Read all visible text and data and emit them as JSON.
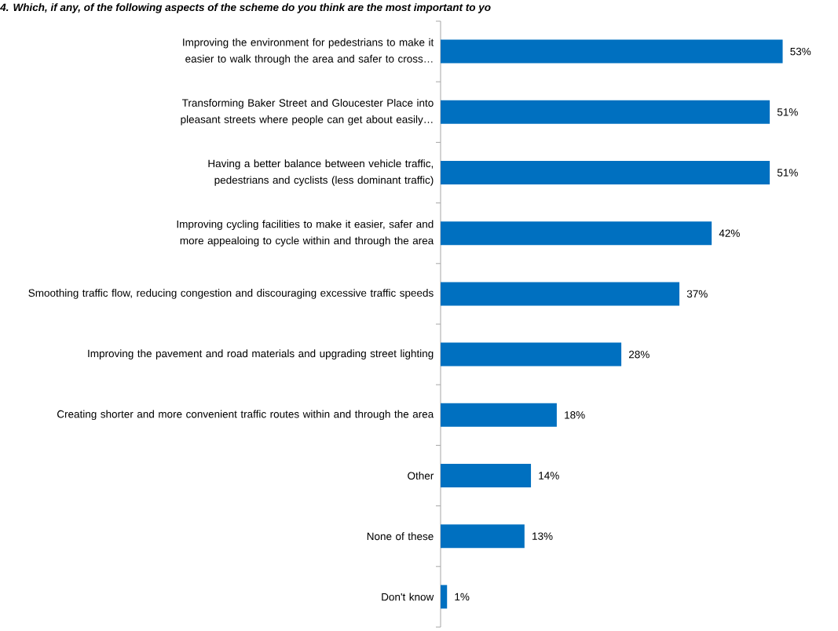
{
  "chart_data": {
    "type": "bar",
    "orientation": "horizontal",
    "title": "4. Which, if any, of the following aspects of the scheme do you think are the most important to yo",
    "categories": [
      "Improving the environment for pedestrians to make it easier to walk through the area and safer to cross…",
      "Transforming Baker Street and Gloucester Place into pleasant streets where people can get about easily…",
      "Having a better balance between vehicle traffic, pedestrians and cyclists (less dominant traffic)",
      "Improving cycling facilities to make it easier, safer and more appealoing to cycle within and through the area",
      "Smoothing traffic flow, reducing congestion and discouraging excessive traffic speeds",
      "Improving the pavement and road materials and upgrading street lighting",
      "Creating shorter and more convenient traffic routes within and through the area",
      "Other",
      "None of these",
      "Don't know"
    ],
    "values": [
      53,
      51,
      51,
      42,
      37,
      28,
      18,
      14,
      13,
      1
    ],
    "value_labels": [
      "53%",
      "51%",
      "51%",
      "42%",
      "37%",
      "28%",
      "18%",
      "14%",
      "13%",
      "1%"
    ],
    "color": "#0070c0"
  }
}
